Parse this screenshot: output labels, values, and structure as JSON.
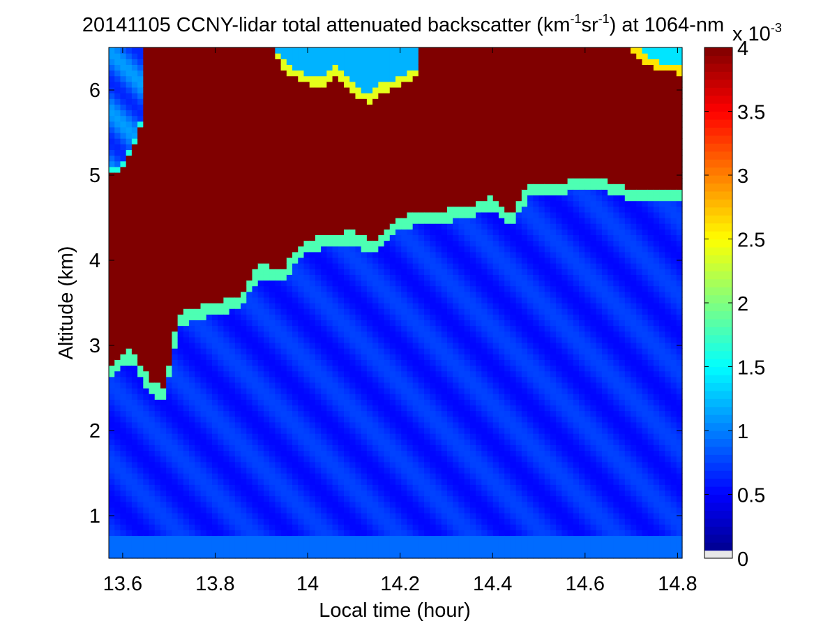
{
  "chart_data": {
    "type": "heatmap",
    "title": {
      "prefix": "20141105 CCNY-lidar total attenuated backscatter (km",
      "sup1": "-1",
      "mid": "sr",
      "sup2": "-1",
      "suffix": ") at 1064-nm"
    },
    "xlabel": "Local time (hour)",
    "ylabel": "Altitude (km)",
    "xlim": [
      13.57,
      14.81
    ],
    "ylim": [
      0.5,
      6.5
    ],
    "x_ticks": [
      13.6,
      13.8,
      14,
      14.2,
      14.4,
      14.6,
      14.8
    ],
    "x_tick_labels": [
      "13.6",
      "13.8",
      "14",
      "14.2",
      "14.4",
      "14.6",
      "14.8"
    ],
    "y_ticks": [
      1,
      2,
      3,
      4,
      5,
      6
    ],
    "y_tick_labels": [
      "1",
      "2",
      "3",
      "4",
      "5",
      "6"
    ],
    "colorbar": {
      "range": [
        0,
        0.004
      ],
      "colormap": "jet",
      "ticks": [
        0,
        0.5,
        1,
        1.5,
        2,
        2.5,
        3,
        3.5,
        4
      ],
      "tick_labels": [
        "0",
        "0.5",
        "1",
        "1.5",
        "2",
        "2.5",
        "3",
        "3.5",
        "4"
      ],
      "multiplier_base": "x 10",
      "multiplier_exp": "-3"
    },
    "cloud_base_altitude_km": {
      "time": [
        13.57,
        13.6,
        13.62,
        13.64,
        13.66,
        13.69,
        13.72,
        13.75,
        13.8,
        13.86,
        13.88,
        13.9,
        13.95,
        13.97,
        14.0,
        14.05,
        14.1,
        14.13,
        14.15,
        14.18,
        14.2,
        14.25,
        14.3,
        14.35,
        14.4,
        14.44,
        14.48,
        14.55,
        14.58,
        14.62,
        14.67,
        14.7,
        14.75,
        14.8
      ],
      "altitude": [
        2.7,
        2.85,
        2.9,
        2.7,
        2.55,
        2.45,
        3.3,
        3.4,
        3.45,
        3.55,
        3.8,
        3.9,
        3.85,
        4.05,
        4.2,
        4.25,
        4.3,
        4.2,
        4.2,
        4.4,
        4.45,
        4.55,
        4.55,
        4.6,
        4.7,
        4.5,
        4.85,
        4.85,
        4.95,
        4.95,
        4.85,
        4.8,
        4.8,
        4.8
      ]
    },
    "upper_gap_top_km": {
      "time": [
        13.93,
        13.96,
        14.0,
        14.03,
        14.06,
        14.1,
        14.13,
        14.16,
        14.19,
        14.22,
        14.24
      ],
      "altitude": [
        6.4,
        6.2,
        6.1,
        6.05,
        6.2,
        6.0,
        5.85,
        6.0,
        6.05,
        6.15,
        6.2
      ]
    },
    "upper_right_gap": {
      "time": [
        14.7,
        14.74,
        14.78,
        14.81
      ],
      "altitude": [
        6.5,
        6.3,
        6.25,
        6.2
      ]
    },
    "upper_left_clear": {
      "time": [
        13.57,
        13.6,
        13.63,
        13.65
      ],
      "altitude": [
        5.05,
        5.1,
        5.4,
        5.8
      ]
    },
    "near_surface_layer_km": [
      0.5,
      0.75
    ]
  }
}
